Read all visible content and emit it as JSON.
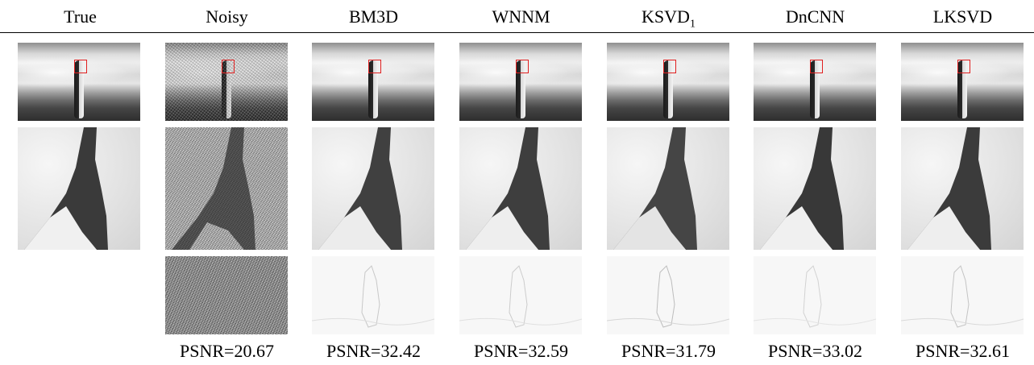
{
  "headers": [
    {
      "label": "True",
      "sub": ""
    },
    {
      "label": "Noisy",
      "sub": ""
    },
    {
      "label": "BM3D",
      "sub": ""
    },
    {
      "label": "WNNM",
      "sub": ""
    },
    {
      "label": "KSVD",
      "sub": "1"
    },
    {
      "label": "DnCNN",
      "sub": ""
    },
    {
      "label": "LKSVD",
      "sub": ""
    }
  ],
  "psnr": [
    "",
    "PSNR=20.67",
    "PSNR=32.42",
    "PSNR=32.59",
    "PSNR=31.79",
    "PSNR=33.02",
    "PSNR=32.61"
  ],
  "colors": {
    "highlight_box": "#e02020"
  }
}
